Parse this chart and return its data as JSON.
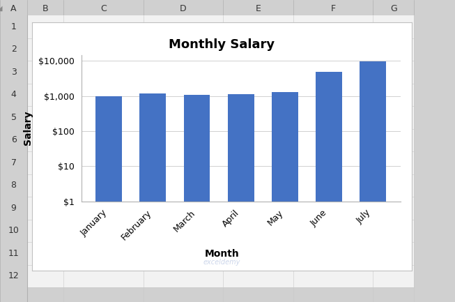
{
  "title": "Monthly Salary",
  "xlabel": "Month",
  "ylabel": "Salary",
  "categories": [
    "January",
    "February",
    "March",
    "April",
    "May",
    "June",
    "July"
  ],
  "values": [
    1000,
    1200,
    1100,
    1150,
    1300,
    5000,
    9800
  ],
  "bar_color": "#4472C4",
  "yticks": [
    1,
    10,
    100,
    1000,
    10000
  ],
  "ytick_labels": [
    "$1",
    "$10",
    "$100",
    "$1,000",
    "$10,000"
  ],
  "ylim": [
    1,
    15000
  ],
  "excel_bg": "#d0d0d0",
  "header_bg": "#e8e8e8",
  "cell_bg": "#ffffff",
  "chart_bg": "#ffffff",
  "col_headers": [
    "A",
    "B",
    "C",
    "D",
    "E",
    "F",
    "G"
  ],
  "row_count": 12,
  "title_fontsize": 13,
  "label_fontsize": 10,
  "tick_fontsize": 9,
  "header_fontsize": 9
}
